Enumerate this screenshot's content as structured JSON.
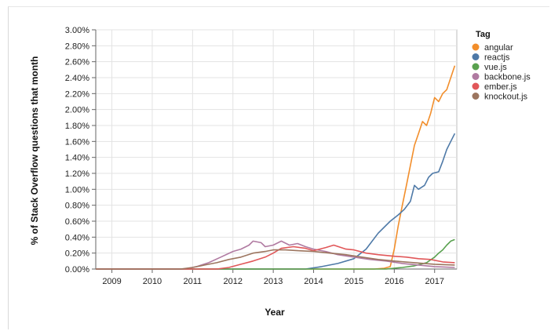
{
  "chart_data": {
    "type": "line",
    "xlabel": "Year",
    "ylabel": "% of Stack Overflow questions that month",
    "xlim": [
      2008.6,
      2017.55
    ],
    "ylim": [
      0,
      3.0
    ],
    "x_ticks": [
      2009,
      2010,
      2011,
      2012,
      2013,
      2014,
      2015,
      2016,
      2017
    ],
    "y_ticks": [
      0,
      0.2,
      0.4,
      0.6,
      0.8,
      1.0,
      1.2,
      1.4,
      1.6,
      1.8,
      2.0,
      2.2,
      2.4,
      2.6,
      2.8,
      3.0
    ],
    "y_tick_labels": [
      "0.00%",
      "0.20%",
      "0.40%",
      "0.60%",
      "0.80%",
      "1.00%",
      "1.20%",
      "1.40%",
      "1.60%",
      "1.80%",
      "2.00%",
      "2.20%",
      "2.40%",
      "2.60%",
      "2.80%",
      "3.00%"
    ],
    "grid": true,
    "legend": {
      "title": "Tag",
      "placement": "right"
    },
    "series": [
      {
        "name": "angular",
        "color": "#f28e2b",
        "x": [
          2008.6,
          2015.5,
          2015.75,
          2015.9,
          2016.0,
          2016.1,
          2016.2,
          2016.3,
          2016.4,
          2016.5,
          2016.6,
          2016.7,
          2016.8,
          2016.9,
          2017.0,
          2017.1,
          2017.2,
          2017.3,
          2017.4,
          2017.5
        ],
        "y": [
          0,
          0,
          0.01,
          0.03,
          0.25,
          0.55,
          0.8,
          1.05,
          1.3,
          1.55,
          1.7,
          1.85,
          1.8,
          1.95,
          2.15,
          2.1,
          2.2,
          2.25,
          2.4,
          2.55
        ]
      },
      {
        "name": "reactjs",
        "color": "#4e79a7",
        "x": [
          2008.6,
          2013.8,
          2014.2,
          2014.6,
          2015.0,
          2015.3,
          2015.6,
          2015.9,
          2016.1,
          2016.25,
          2016.4,
          2016.5,
          2016.6,
          2016.75,
          2016.85,
          2016.95,
          2017.1,
          2017.2,
          2017.3,
          2017.4,
          2017.5
        ],
        "y": [
          0,
          0,
          0.03,
          0.07,
          0.13,
          0.25,
          0.45,
          0.6,
          0.68,
          0.75,
          0.85,
          1.05,
          1.0,
          1.05,
          1.15,
          1.2,
          1.22,
          1.35,
          1.5,
          1.6,
          1.7
        ]
      },
      {
        "name": "vue.js",
        "color": "#59a14f",
        "x": [
          2008.6,
          2015.8,
          2016.2,
          2016.5,
          2016.8,
          2017.0,
          2017.1,
          2017.2,
          2017.3,
          2017.4,
          2017.5
        ],
        "y": [
          0,
          0,
          0.02,
          0.04,
          0.08,
          0.15,
          0.2,
          0.24,
          0.3,
          0.35,
          0.37
        ]
      },
      {
        "name": "backbone.js",
        "color": "#b07aa1",
        "x": [
          2008.6,
          2010.8,
          2011.1,
          2011.4,
          2011.7,
          2012.0,
          2012.2,
          2012.4,
          2012.5,
          2012.7,
          2012.8,
          2013.0,
          2013.2,
          2013.4,
          2013.6,
          2013.8,
          2014.0,
          2014.3,
          2014.6,
          2015.0,
          2015.4,
          2015.8,
          2016.2,
          2016.6,
          2017.0,
          2017.5
        ],
        "y": [
          0,
          0,
          0.03,
          0.08,
          0.15,
          0.22,
          0.25,
          0.3,
          0.35,
          0.33,
          0.28,
          0.3,
          0.35,
          0.3,
          0.32,
          0.28,
          0.25,
          0.22,
          0.18,
          0.15,
          0.12,
          0.1,
          0.07,
          0.05,
          0.03,
          0.02
        ]
      },
      {
        "name": "ember.js",
        "color": "#e15759",
        "x": [
          2008.6,
          2011.6,
          2011.9,
          2012.2,
          2012.5,
          2012.8,
          2013.0,
          2013.2,
          2013.5,
          2013.8,
          2014.0,
          2014.3,
          2014.5,
          2014.8,
          2015.0,
          2015.3,
          2015.6,
          2016.0,
          2016.3,
          2016.6,
          2016.9,
          2017.2,
          2017.5
        ],
        "y": [
          0,
          0,
          0.02,
          0.06,
          0.1,
          0.15,
          0.2,
          0.26,
          0.28,
          0.26,
          0.23,
          0.27,
          0.3,
          0.25,
          0.24,
          0.2,
          0.18,
          0.16,
          0.15,
          0.13,
          0.12,
          0.09,
          0.08
        ]
      },
      {
        "name": "knockout.js",
        "color": "#9c755f",
        "x": [
          2008.6,
          2010.7,
          2011.0,
          2011.3,
          2011.6,
          2011.9,
          2012.2,
          2012.5,
          2012.8,
          2013.0,
          2013.3,
          2013.6,
          2014.0,
          2014.4,
          2014.8,
          2015.2,
          2015.6,
          2016.0,
          2016.5,
          2017.0,
          2017.5
        ],
        "y": [
          0,
          0,
          0.02,
          0.05,
          0.08,
          0.12,
          0.15,
          0.2,
          0.22,
          0.24,
          0.24,
          0.23,
          0.22,
          0.2,
          0.18,
          0.15,
          0.12,
          0.1,
          0.08,
          0.06,
          0.05
        ]
      }
    ]
  }
}
